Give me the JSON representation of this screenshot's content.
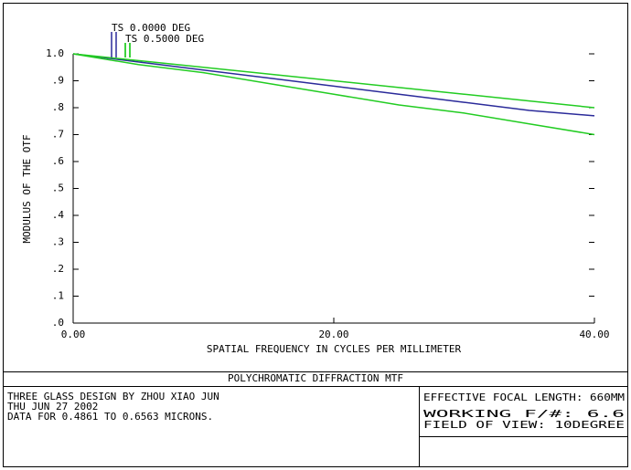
{
  "chart_data": {
    "type": "line",
    "y_label": "MODULUS OF THE OTF",
    "x_label": "SPATIAL FREQUENCY IN CYCLES PER MILLIMETER",
    "x": [
      0,
      5,
      10,
      15,
      20,
      25,
      30,
      35,
      40
    ],
    "series": [
      {
        "name": "TS 0.0000 DEG",
        "color": "#2b2b9a",
        "values": [
          1.0,
          0.97,
          0.94,
          0.91,
          0.88,
          0.85,
          0.82,
          0.79,
          0.77
        ]
      },
      {
        "name": "TS 0.5000 DEG",
        "color": "#22cc22",
        "values": [
          1.0,
          0.975,
          0.95,
          0.925,
          0.9,
          0.875,
          0.85,
          0.825,
          0.8
        ]
      },
      {
        "color": "#22cc22",
        "values": [
          1.0,
          0.96,
          0.93,
          0.89,
          0.85,
          0.81,
          0.78,
          0.74,
          0.7
        ]
      }
    ],
    "xlim": [
      0,
      40
    ],
    "xticks": [
      {
        "value": 0,
        "label": "0.00"
      },
      {
        "value": 20,
        "label": "20.00"
      },
      {
        "value": 40,
        "label": "40.00"
      }
    ],
    "ylim": [
      0,
      1
    ],
    "yticks": [
      {
        "value": 0,
        "label": ".0"
      },
      {
        "value": 0.1,
        "label": ".1"
      },
      {
        "value": 0.2,
        "label": ".2"
      },
      {
        "value": 0.3,
        "label": ".3"
      },
      {
        "value": 0.4,
        "label": ".4"
      },
      {
        "value": 0.5,
        "label": ".5"
      },
      {
        "value": 0.6,
        "label": ".6"
      },
      {
        "value": 0.7,
        "label": ".7"
      },
      {
        "value": 0.8,
        "label": ".8"
      },
      {
        "value": 0.9,
        "label": ".9"
      },
      {
        "value": 1,
        "label": "1.0"
      }
    ]
  },
  "footer": {
    "title": "POLYCHROMATIC DIFFRACTION MTF",
    "left_lines": [
      "THREE GLASS DESIGN  BY ZHOU XIAO JUN",
      "THU JUN 27 2002",
      "DATA FOR 0.4861 TO 0.6563 MICRONS."
    ],
    "right_lines": [
      "EFFECTIVE FOCAL LENGTH: 660MM",
      "WORKING F/#: 6.6",
      "FIELD OF VIEW: 10DEGREE"
    ]
  }
}
